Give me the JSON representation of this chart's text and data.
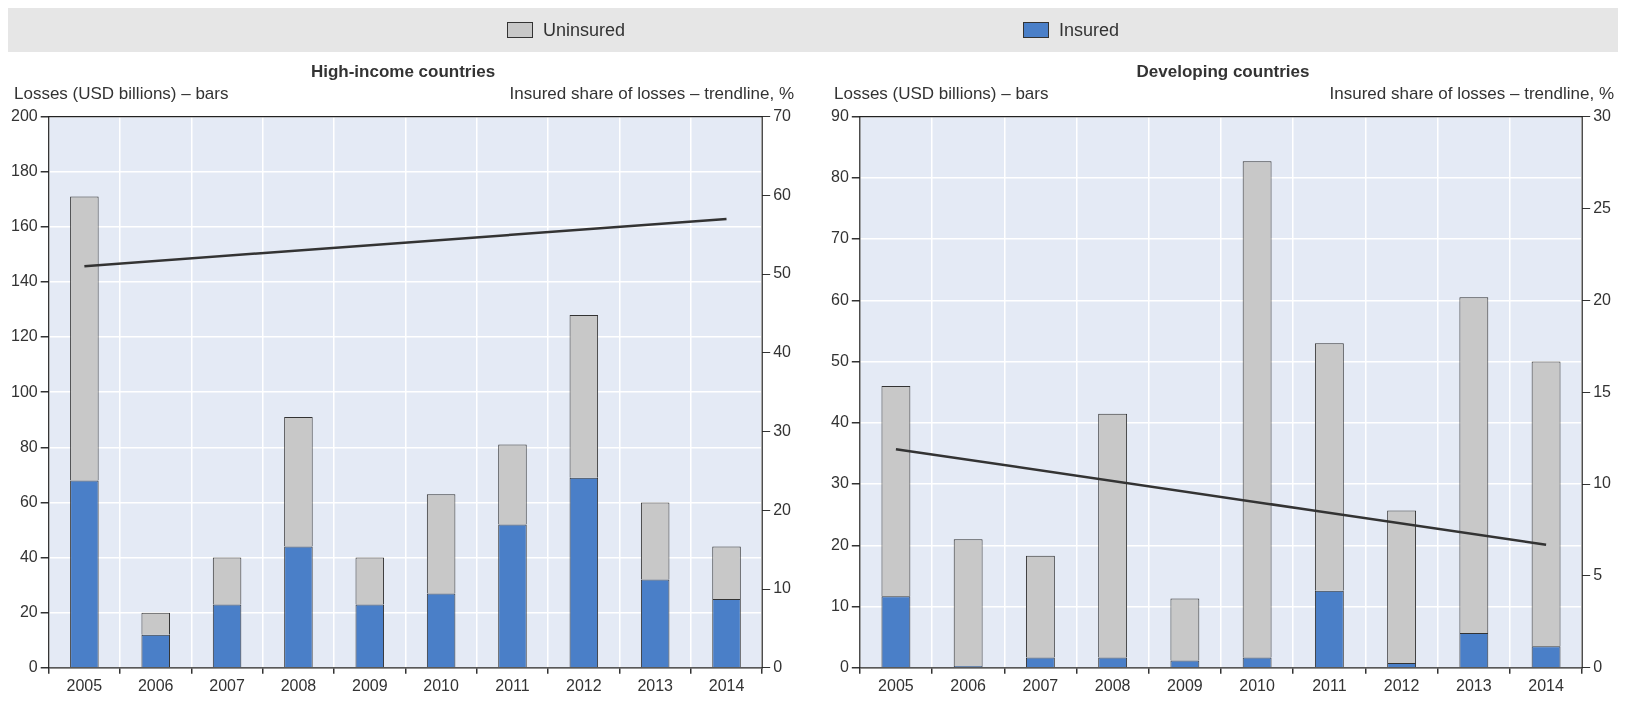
{
  "chart_data": [
    {
      "type": "bar",
      "title": "High-income countries",
      "ylabel": "Losses (USD billions) – bars",
      "y2label": "Insured share of losses – trendline, %",
      "categories": [
        "2005",
        "2006",
        "2007",
        "2008",
        "2009",
        "2010",
        "2011",
        "2012",
        "2013",
        "2014"
      ],
      "stacked": true,
      "grid": true,
      "legend": "top",
      "series": [
        {
          "name": "Insured",
          "color": "#4a7fc8",
          "values": [
            68,
            12,
            23,
            44,
            23,
            27,
            52,
            69,
            32,
            25
          ]
        },
        {
          "name": "Uninsured",
          "color": "#c8c8c8",
          "values": [
            103,
            8,
            17,
            47,
            17,
            36,
            29,
            59,
            28,
            19
          ]
        },
        {
          "type": "line",
          "axis": "y2",
          "color": "#333333",
          "values": [
            51,
            null,
            null,
            null,
            null,
            null,
            null,
            null,
            null,
            57
          ]
        }
      ],
      "ylim": [
        0,
        200
      ],
      "yticks": [
        0,
        20,
        40,
        60,
        80,
        100,
        120,
        140,
        160,
        180,
        200
      ],
      "y2lim": [
        0,
        70
      ],
      "y2ticks": [
        0,
        10,
        20,
        30,
        40,
        50,
        60,
        70
      ]
    },
    {
      "type": "bar",
      "title": "Developing countries",
      "ylabel": "Losses (USD billions) – bars",
      "y2label": "Insured share of losses – trendline, %",
      "categories": [
        "2005",
        "2006",
        "2007",
        "2008",
        "2009",
        "2010",
        "2011",
        "2012",
        "2013",
        "2014"
      ],
      "stacked": true,
      "grid": true,
      "series": [
        {
          "color": "#4a7fc8",
          "values": [
            11.7,
            0.3,
            1.7,
            1.7,
            1.2,
            1.7,
            12.6,
            0.8,
            5.7,
            3.5
          ]
        },
        {
          "color": "#c8c8c8",
          "values": [
            34.3,
            20.7,
            16.6,
            39.8,
            10.1,
            81,
            40.4,
            24.9,
            54.8,
            46.5
          ]
        },
        {
          "type": "line",
          "axis": "y2",
          "color": "#333333",
          "values": [
            11.9,
            null,
            null,
            null,
            null,
            null,
            null,
            null,
            null,
            6.7
          ]
        }
      ],
      "ylim": [
        0,
        90
      ],
      "yticks": [
        0,
        10,
        20,
        30,
        40,
        50,
        60,
        70,
        80,
        90
      ],
      "y2lim": [
        0,
        30
      ],
      "y2ticks": [
        0,
        5,
        10,
        15,
        20,
        25,
        30
      ]
    }
  ]
}
